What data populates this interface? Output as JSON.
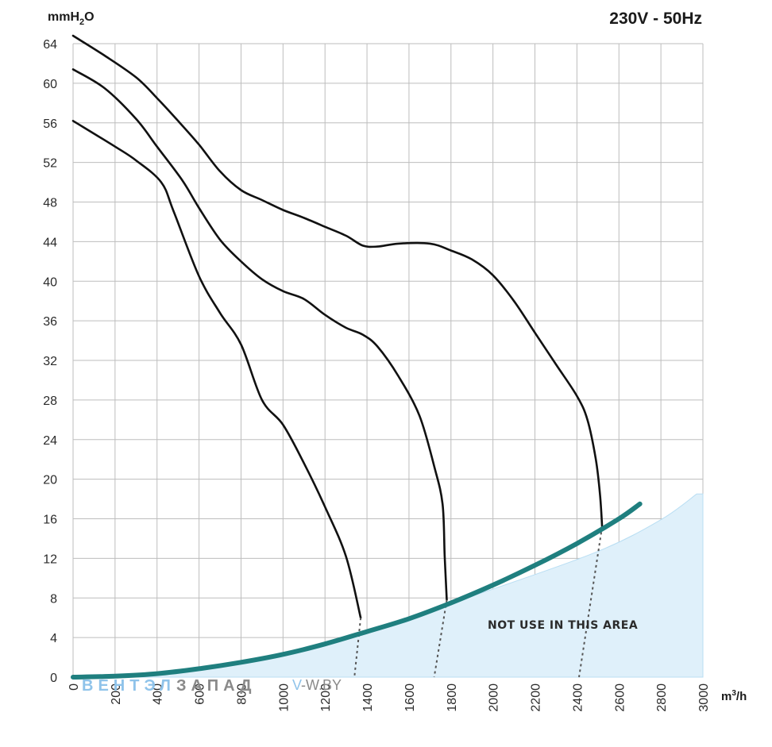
{
  "title": "230V - 50Hz",
  "chart_data": {
    "type": "line",
    "ylabel_main": "mmH",
    "ylabel_sub": "2",
    "ylabel_tail": "O",
    "xlabel_main": "m",
    "xlabel_sup": "3",
    "xlabel_tail": "/h",
    "xlim": [
      0,
      3000
    ],
    "ylim": [
      0,
      64
    ],
    "x_ticks": [
      "0",
      "200",
      "400",
      "600",
      "800",
      "1000",
      "1200",
      "1400",
      "1600",
      "1800",
      "2000",
      "2200",
      "2400",
      "2600",
      "2800",
      "3000"
    ],
    "y_ticks": [
      "0",
      "4",
      "8",
      "12",
      "16",
      "20",
      "24",
      "28",
      "32",
      "36",
      "40",
      "44",
      "48",
      "52",
      "56",
      "60",
      "64"
    ],
    "grid": true,
    "annotation": "NOT USE IN THIS AREA",
    "colors": {
      "fan_curve": "#111111",
      "system_curve": "#1f7f7f",
      "forbidden_area": "#dff0fa",
      "grid": "#bdbdbd"
    },
    "forbidden_area": [
      [
        0,
        0
      ],
      [
        500,
        0.6
      ],
      [
        1000,
        2.4
      ],
      [
        1500,
        5.4
      ],
      [
        2000,
        8.9
      ],
      [
        2500,
        12.7
      ],
      [
        2800,
        15.9
      ],
      [
        2970,
        18.5
      ],
      [
        3000,
        18.5
      ],
      [
        3000,
        0
      ]
    ],
    "system_curve": [
      [
        0,
        0
      ],
      [
        200,
        0.1
      ],
      [
        400,
        0.35
      ],
      [
        600,
        0.85
      ],
      [
        800,
        1.5
      ],
      [
        1000,
        2.3
      ],
      [
        1200,
        3.35
      ],
      [
        1400,
        4.6
      ],
      [
        1600,
        5.9
      ],
      [
        1800,
        7.5
      ],
      [
        2000,
        9.3
      ],
      [
        2200,
        11.3
      ],
      [
        2400,
        13.5
      ],
      [
        2600,
        16.0
      ],
      [
        2700,
        17.5
      ]
    ],
    "series": [
      {
        "points": [
          [
            0,
            56.2
          ],
          [
            200,
            53.6
          ],
          [
            300,
            52.2
          ],
          [
            420,
            50.0
          ],
          [
            480,
            47.0
          ],
          [
            600,
            40.5
          ],
          [
            700,
            36.8
          ],
          [
            800,
            33.6
          ],
          [
            900,
            28.0
          ],
          [
            1000,
            25.5
          ],
          [
            1100,
            21.6
          ],
          [
            1200,
            17.2
          ],
          [
            1300,
            12.2
          ],
          [
            1370,
            6.0
          ]
        ],
        "extension": [
          [
            1370,
            6.0
          ],
          [
            1340,
            0
          ]
        ]
      },
      {
        "points": [
          [
            0,
            61.4
          ],
          [
            150,
            59.5
          ],
          [
            300,
            56.4
          ],
          [
            400,
            53.6
          ],
          [
            520,
            50.2
          ],
          [
            600,
            47.4
          ],
          [
            700,
            44.2
          ],
          [
            800,
            42.0
          ],
          [
            900,
            40.2
          ],
          [
            1000,
            39.0
          ],
          [
            1100,
            38.2
          ],
          [
            1200,
            36.6
          ],
          [
            1300,
            35.3
          ],
          [
            1380,
            34.6
          ],
          [
            1450,
            33.4
          ],
          [
            1550,
            30.4
          ],
          [
            1650,
            26.4
          ],
          [
            1720,
            21.3
          ],
          [
            1760,
            17.5
          ],
          [
            1770,
            12.2
          ],
          [
            1780,
            7.8
          ]
        ],
        "extension": [
          [
            1780,
            7.8
          ],
          [
            1720,
            0
          ]
        ]
      },
      {
        "points": [
          [
            0,
            64.8
          ],
          [
            150,
            62.8
          ],
          [
            300,
            60.6
          ],
          [
            400,
            58.5
          ],
          [
            500,
            56.2
          ],
          [
            600,
            53.8
          ],
          [
            700,
            51.1
          ],
          [
            800,
            49.2
          ],
          [
            900,
            48.2
          ],
          [
            1000,
            47.2
          ],
          [
            1100,
            46.4
          ],
          [
            1200,
            45.5
          ],
          [
            1300,
            44.6
          ],
          [
            1380,
            43.6
          ],
          [
            1450,
            43.5
          ],
          [
            1550,
            43.8
          ],
          [
            1700,
            43.8
          ],
          [
            1800,
            43.1
          ],
          [
            1900,
            42.2
          ],
          [
            2000,
            40.6
          ],
          [
            2100,
            38.0
          ],
          [
            2200,
            34.8
          ],
          [
            2300,
            31.6
          ],
          [
            2400,
            28.4
          ],
          [
            2450,
            26.0
          ],
          [
            2490,
            22.0
          ],
          [
            2510,
            18.4
          ],
          [
            2520,
            15.2
          ]
        ],
        "extension": [
          [
            2520,
            15.2
          ],
          [
            2410,
            0
          ]
        ]
      }
    ]
  },
  "watermark": {
    "part1": "ВЕНТЭЛ",
    "part2": "ЗАПАД",
    "part3a": "V",
    "part3b": "-W.BY"
  }
}
